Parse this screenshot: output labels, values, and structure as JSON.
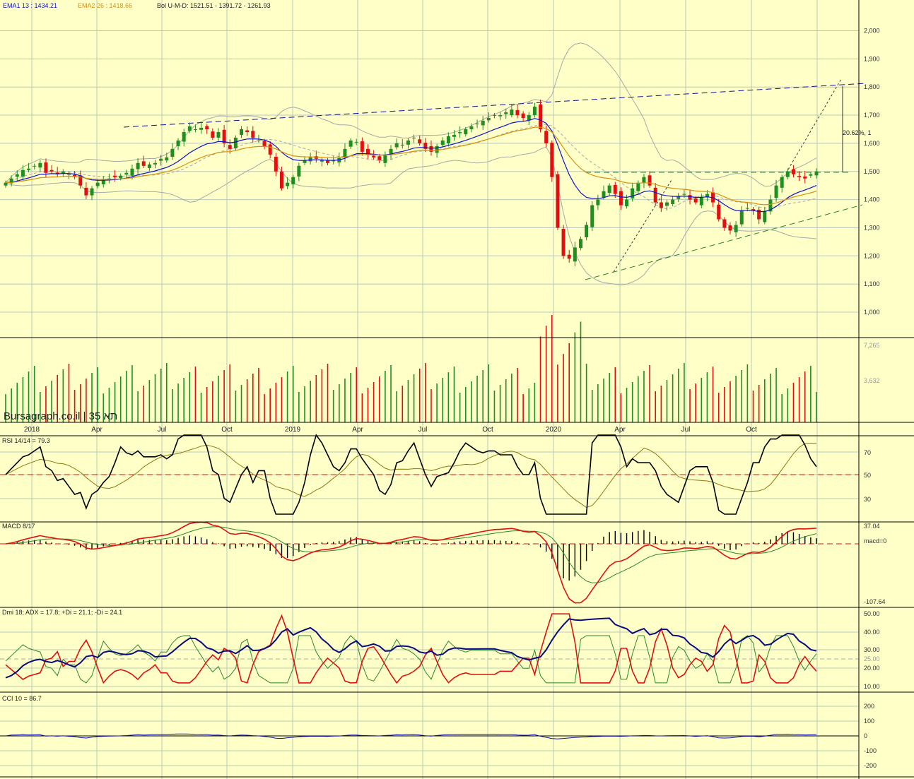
{
  "legend": {
    "ema1": "EMA1 13 : 1434.21",
    "ema2": "EMA2 26 : 1418.66",
    "bol": "Bol U-M-D: 1521.51 - 1391.72 - 1261.93"
  },
  "colors": {
    "background": "#ffffc8",
    "grid": "#b8c8b8",
    "up": "#1f8f1f",
    "down": "#e01010",
    "ema1": "#1010d0",
    "ema2": "#d89010",
    "bollinger": "#a8a8a8",
    "trend": "#1010a0",
    "support": "#2a8a2a"
  },
  "watermark": "Bursagraph.co.il | תא 35",
  "annotation": "20.62%, 1",
  "x_labels": [
    "2018",
    "Apr",
    "Jul",
    "Oct",
    "2019",
    "Apr",
    "Jul",
    "Oct",
    "2020",
    "Apr",
    "Jul",
    "Oct"
  ],
  "price_ticks": [
    "2,000",
    "1,900",
    "1,800",
    "1,700",
    "1,600",
    "1,500",
    "1,400",
    "1,300",
    "1,200",
    "1,100",
    "1,000"
  ],
  "volume_ticks": [
    "7,265",
    "3,632"
  ],
  "rsi": {
    "label": "RSI 14/14 = 79.3",
    "ticks": [
      "70",
      "50",
      "30"
    ]
  },
  "macd": {
    "label": "MACD 8/17",
    "ticks": [
      "37.04",
      "macd=0",
      "-107.64"
    ]
  },
  "dmi": {
    "label": "Dmi 18; ADX = 17.8; +Di = 21.1; -Di = 24.1",
    "ticks": [
      "50.00",
      "40.00",
      "30.00",
      "25.00",
      "20.00",
      "10.00"
    ]
  },
  "cci": {
    "label": "CCI 10 = 86.7",
    "ticks": [
      "200",
      "100",
      "0",
      "-100",
      "-200"
    ]
  },
  "chart_data": {
    "type": "line",
    "panels": [
      "price",
      "volume",
      "rsi",
      "macd",
      "dmi",
      "cci"
    ],
    "price_close": [
      1460,
      1475,
      1490,
      1505,
      1510,
      1520,
      1530,
      1495,
      1500,
      1490,
      1500,
      1490,
      1480,
      1450,
      1415,
      1440,
      1460,
      1470,
      1475,
      1480,
      1485,
      1495,
      1510,
      1530,
      1520,
      1525,
      1530,
      1545,
      1550,
      1580,
      1610,
      1640,
      1660,
      1650,
      1655,
      1650,
      1620,
      1640,
      1600,
      1580,
      1620,
      1650,
      1640,
      1620,
      1610,
      1590,
      1560,
      1500,
      1440,
      1460,
      1480,
      1520,
      1540,
      1550,
      1545,
      1540,
      1530,
      1540,
      1550,
      1580,
      1610,
      1605,
      1570,
      1560,
      1550,
      1540,
      1560,
      1580,
      1600,
      1595,
      1610,
      1620,
      1600,
      1580,
      1570,
      1590,
      1610,
      1625,
      1630,
      1640,
      1650,
      1660,
      1670,
      1680,
      1690,
      1700,
      1700,
      1710,
      1720,
      1700,
      1690,
      1700,
      1730,
      1650,
      1600,
      1480,
      1300,
      1200,
      1190,
      1230,
      1260,
      1310,
      1380,
      1400,
      1430,
      1450,
      1420,
      1380,
      1400,
      1440,
      1460,
      1480,
      1450,
      1390,
      1370,
      1390,
      1400,
      1410,
      1420,
      1400,
      1390,
      1410,
      1420,
      1390,
      1330,
      1300,
      1290,
      1310,
      1360,
      1370,
      1360,
      1330,
      1360,
      1400,
      1450,
      1480,
      1500,
      1490,
      1480,
      1475,
      1490,
      1500
    ]
  }
}
